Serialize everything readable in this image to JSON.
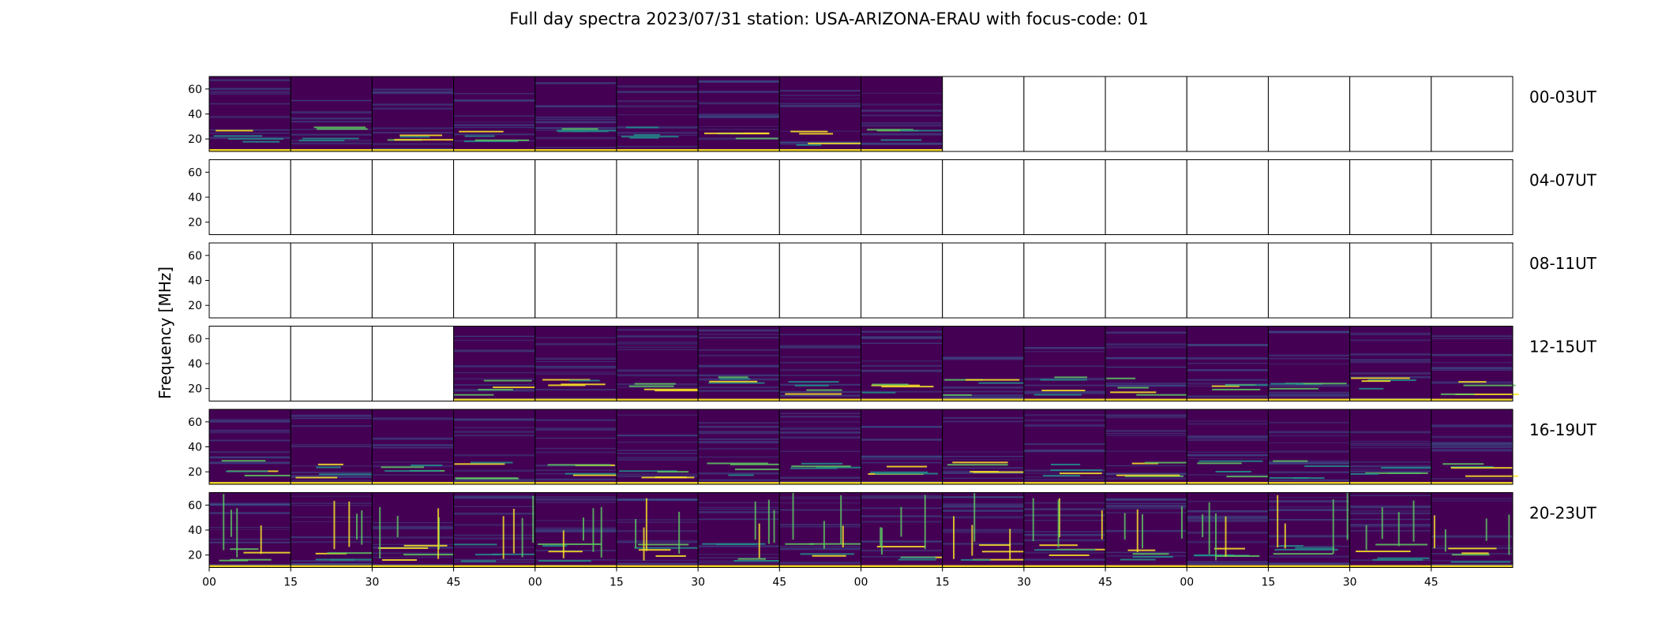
{
  "chart_data": {
    "type": "heatmap",
    "title": "Full day spectra 2023/07/31 station: USA-ARIZONA-ERAU with focus-code: 01",
    "ylabel": "Frequency [MHz]",
    "ylim": [
      10,
      70
    ],
    "yticks": [
      20,
      40,
      60
    ],
    "xticks": [
      "00",
      "15",
      "30",
      "45",
      "00",
      "15",
      "30",
      "45",
      "00",
      "15",
      "30",
      "45",
      "00",
      "15",
      "30",
      "45"
    ],
    "panels_per_row": 16,
    "panel_minutes": 15,
    "colormap": [
      "#440154",
      "#3b528b",
      "#21918c",
      "#5ec962",
      "#fde725"
    ],
    "rows": [
      {
        "label": "00-03UT",
        "has_data": [
          1,
          1,
          1,
          1,
          1,
          1,
          1,
          1,
          1,
          0,
          0,
          0,
          0,
          0,
          0,
          0
        ]
      },
      {
        "label": "04-07UT",
        "has_data": [
          0,
          0,
          0,
          0,
          0,
          0,
          0,
          0,
          0,
          0,
          0,
          0,
          0,
          0,
          0,
          0
        ]
      },
      {
        "label": "08-11UT",
        "has_data": [
          0,
          0,
          0,
          0,
          0,
          0,
          0,
          0,
          0,
          0,
          0,
          0,
          0,
          0,
          0,
          0
        ]
      },
      {
        "label": "12-15UT",
        "has_data": [
          0,
          0,
          0,
          1,
          1,
          1,
          1,
          1,
          1,
          1,
          1,
          1,
          1,
          1,
          1,
          1
        ]
      },
      {
        "label": "16-19UT",
        "has_data": [
          1,
          1,
          1,
          1,
          1,
          1,
          1,
          1,
          1,
          1,
          1,
          1,
          1,
          1,
          1,
          1
        ]
      },
      {
        "label": "20-23UT",
        "has_data": [
          1,
          1,
          1,
          1,
          1,
          1,
          1,
          1,
          1,
          1,
          1,
          1,
          1,
          1,
          1,
          1
        ]
      }
    ]
  }
}
